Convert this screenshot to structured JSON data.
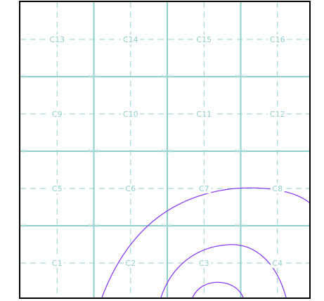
{
  "map": {
    "grid_color": "#8fd0cc",
    "contour_color": "#8a3ff0",
    "watermark_text": "NEW",
    "cells": [
      {
        "id": "C13",
        "row": 0,
        "col": 0
      },
      {
        "id": "C14",
        "row": 0,
        "col": 1
      },
      {
        "id": "C15",
        "row": 0,
        "col": 2
      },
      {
        "id": "C16",
        "row": 0,
        "col": 3
      },
      {
        "id": "C9",
        "row": 1,
        "col": 0
      },
      {
        "id": "C10",
        "row": 1,
        "col": 1
      },
      {
        "id": "C11",
        "row": 1,
        "col": 2
      },
      {
        "id": "C12",
        "row": 1,
        "col": 3
      },
      {
        "id": "C5",
        "row": 2,
        "col": 0
      },
      {
        "id": "C6",
        "row": 2,
        "col": 1
      },
      {
        "id": "C7",
        "row": 2,
        "col": 2
      },
      {
        "id": "C8",
        "row": 2,
        "col": 3
      },
      {
        "id": "C1",
        "row": 3,
        "col": 0
      },
      {
        "id": "C2",
        "row": 3,
        "col": 1
      },
      {
        "id": "C3",
        "row": 3,
        "col": 2
      },
      {
        "id": "C4",
        "row": 3,
        "col": 3
      }
    ]
  }
}
